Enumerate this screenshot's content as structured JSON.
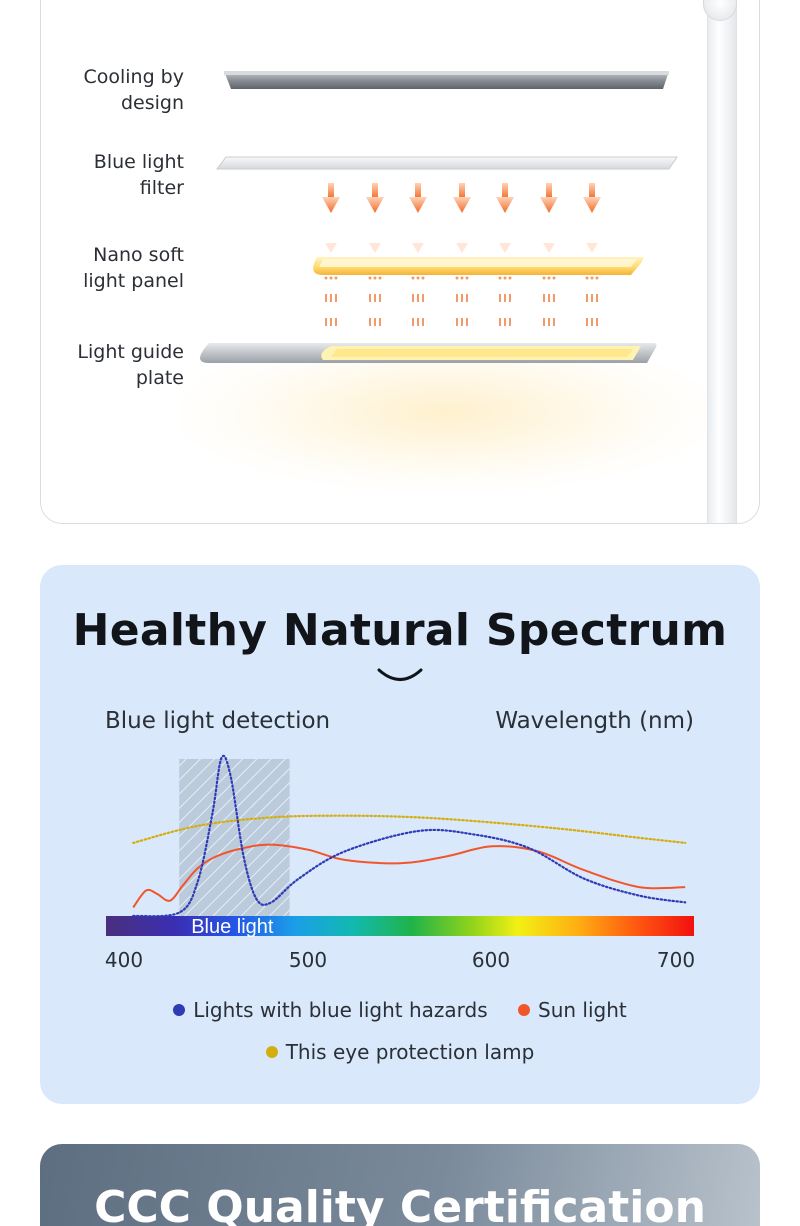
{
  "layers": {
    "items": [
      {
        "label": "Cooling by\ndesign"
      },
      {
        "label": "Blue light\nfilter"
      },
      {
        "label": "Nano soft\nlight panel"
      },
      {
        "label": "Light guide\nplate"
      }
    ]
  },
  "spectrum": {
    "title": "Healthy Natural Spectrum",
    "left_caption": "Blue light detection",
    "right_caption": "Wavelength (nm)",
    "band_label": "Blue light",
    "legend": [
      {
        "label": "Lights with blue light hazards",
        "color": "#2e3bb5"
      },
      {
        "label": "Sun light",
        "color": "#f2552c"
      },
      {
        "label": "This eye protection lamp",
        "color": "#d4ad10"
      }
    ]
  },
  "chart_data": {
    "type": "line",
    "x_ticks": [
      "400",
      "500",
      "600",
      "700"
    ],
    "xlim": [
      400,
      720
    ],
    "highlight_band": {
      "from": 430,
      "to": 490,
      "label": "Blue light"
    },
    "series": [
      {
        "name": "Lights with blue light hazards",
        "color": "#2e3bb5",
        "style": "dotted",
        "x": [
          405,
          430,
          440,
          448,
          453,
          458,
          465,
          472,
          480,
          495,
          520,
          560,
          590,
          620,
          650,
          680,
          705
        ],
        "y": [
          0.0,
          0.02,
          0.2,
          0.6,
          0.93,
          0.82,
          0.35,
          0.1,
          0.08,
          0.22,
          0.38,
          0.5,
          0.48,
          0.4,
          0.22,
          0.12,
          0.08
        ]
      },
      {
        "name": "Sun light",
        "color": "#f2552c",
        "style": "solid",
        "x": [
          405,
          412,
          418,
          425,
          432,
          440,
          450,
          465,
          480,
          500,
          520,
          550,
          575,
          600,
          625,
          650,
          680,
          705
        ],
        "y": [
          0.05,
          0.15,
          0.13,
          0.09,
          0.18,
          0.28,
          0.35,
          0.4,
          0.42,
          0.39,
          0.33,
          0.31,
          0.35,
          0.41,
          0.38,
          0.27,
          0.17,
          0.17
        ]
      },
      {
        "name": "This eye protection lamp",
        "color": "#d4ad10",
        "style": "dotted",
        "x": [
          405,
          440,
          480,
          520,
          560,
          600,
          640,
          680,
          705
        ],
        "y": [
          0.43,
          0.53,
          0.58,
          0.59,
          0.58,
          0.55,
          0.51,
          0.46,
          0.43
        ]
      }
    ]
  },
  "certification": {
    "title": "CCC Quality Certification"
  }
}
